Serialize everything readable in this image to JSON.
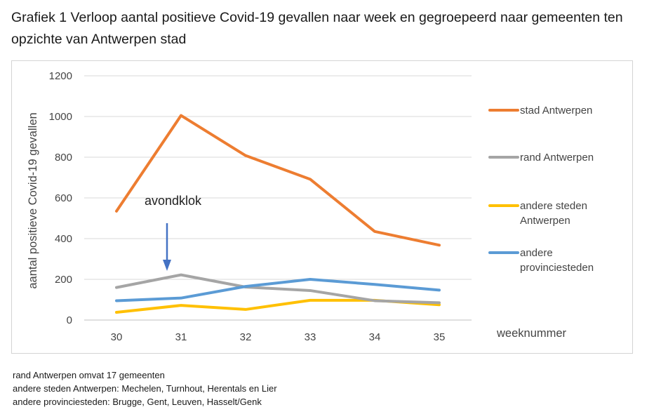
{
  "caption": "Grafiek 1  Verloop aantal positieve Covid-19 gevallen naar week en gegroepeerd naar gemeenten ten opzichte van Antwerpen stad",
  "chart_data": {
    "type": "line",
    "title": "",
    "xlabel": "weeknummer",
    "ylabel": "aantal positieve Covid-19 gevallen",
    "categories": [
      "30",
      "31",
      "32",
      "33",
      "34",
      "35"
    ],
    "ylim": [
      0,
      1200
    ],
    "yticks": [
      "0",
      "200",
      "400",
      "600",
      "800",
      "1000",
      "1200"
    ],
    "grid": true,
    "legend_position": "right",
    "series": [
      {
        "name": "stad Antwerpen",
        "color": "#ED7D31",
        "values": [
          535,
          1005,
          808,
          692,
          435,
          368
        ]
      },
      {
        "name": "rand Antwerpen",
        "color": "#A5A5A5",
        "values": [
          160,
          222,
          162,
          145,
          95,
          85
        ]
      },
      {
        "name": "andere steden Antwerpen",
        "color": "#FFC000",
        "values": [
          38,
          72,
          52,
          97,
          97,
          75
        ]
      },
      {
        "name": "andere provinciesteden",
        "color": "#5B9BD5",
        "values": [
          95,
          108,
          165,
          200,
          175,
          147
        ]
      }
    ],
    "legend_lines": [
      [
        "stad Antwerpen"
      ],
      [
        "rand Antwerpen"
      ],
      [
        "andere steden",
        "Antwerpen"
      ],
      [
        "andere",
        "provinciesteden"
      ]
    ],
    "annotation": {
      "text": "avondklok",
      "at_category": "31"
    }
  },
  "notes": [
    "rand Antwerpen omvat 17 gemeenten",
    "andere steden Antwerpen: Mechelen, Turnhout, Herentals en Lier",
    "andere provinciesteden: Brugge, Gent, Leuven, Hasselt/Genk"
  ]
}
